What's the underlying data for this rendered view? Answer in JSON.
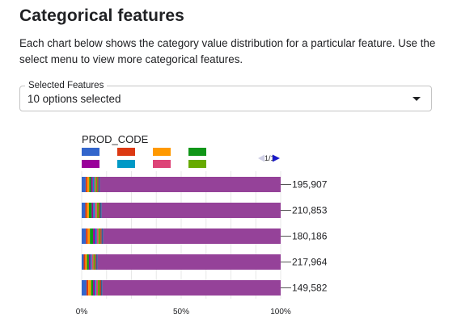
{
  "header": {
    "title": "Categorical features",
    "description": "Each chart below shows the category value distribution for a particular feature. Use the select menu to view more categorical features."
  },
  "select": {
    "label": "Selected Features",
    "value": "10 options selected",
    "arrow_icon": "dropdown-arrow-icon"
  },
  "colors": {
    "accent_purple": "#954299",
    "legend": [
      "#3366cc",
      "#dc3912",
      "#ff9900",
      "#109618",
      "#990099",
      "#0099c6",
      "#dd4477",
      "#66aa00"
    ]
  },
  "chart_data": {
    "type": "bar",
    "orientation": "horizontal",
    "stacked": "percent",
    "title": "PROD_CODE",
    "pager": "1/1",
    "x_ticks": [
      "0%",
      "50%",
      "100%"
    ],
    "xlim": [
      0,
      100
    ],
    "grid": true,
    "legend_position": "top",
    "categories": [
      "195,907",
      "210,853",
      "180,186",
      "217,964",
      "149,582"
    ],
    "series": [
      {
        "color": "#3366cc",
        "values": [
          2.0,
          1.8,
          2.1,
          1.0,
          2.4
        ]
      },
      {
        "color": "#dc3912",
        "values": [
          0.8,
          0.8,
          0.9,
          0.8,
          0.9
        ]
      },
      {
        "color": "#ff9900",
        "values": [
          1.0,
          1.0,
          1.1,
          0.8,
          1.4
        ]
      },
      {
        "color": "#109618",
        "values": [
          1.0,
          1.4,
          1.6,
          1.0,
          1.0
        ]
      },
      {
        "color": "#990099",
        "values": [
          0.8,
          0.8,
          1.0,
          0.8,
          0.8
        ]
      },
      {
        "color": "#0099c6",
        "values": [
          0.7,
          0.8,
          0.8,
          0.6,
          0.7
        ]
      },
      {
        "color": "#dd4477",
        "values": [
          0.7,
          1.0,
          0.9,
          0.8,
          0.9
        ]
      },
      {
        "color": "#66aa00",
        "values": [
          0.8,
          0.9,
          1.0,
          0.8,
          1.0
        ]
      },
      {
        "color": "#b82e2e",
        "values": [
          0.6,
          0.6,
          0.6,
          0.6,
          0.6
        ]
      },
      {
        "color": "#316395",
        "values": [
          0.8,
          0.9,
          0.8,
          0.8,
          0.7
        ]
      },
      {
        "color": "#954299",
        "values": [
          90.8,
          89.4,
          88.9,
          91.2,
          89.2
        ]
      }
    ]
  }
}
